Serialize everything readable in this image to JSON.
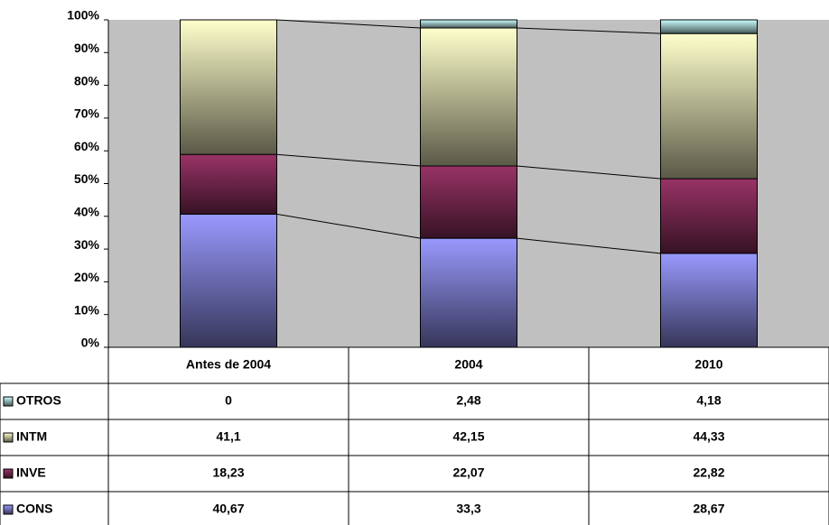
{
  "chart_data": {
    "type": "stacked_bar_percent",
    "categories": [
      "Antes de 2004",
      "2004",
      "2010"
    ],
    "series": [
      {
        "name": "CONS",
        "color": "#9999ff",
        "values": [
          40.67,
          33.3,
          28.67
        ],
        "value_labels": [
          "40,67",
          "33,3",
          "28,67"
        ]
      },
      {
        "name": "INVE",
        "color": "#993366",
        "values": [
          18.23,
          22.07,
          22.82
        ],
        "value_labels": [
          "18,23",
          "22,07",
          "22,82"
        ]
      },
      {
        "name": "INTM",
        "color": "#ffffcc",
        "values": [
          41.1,
          42.15,
          44.33
        ],
        "value_labels": [
          "41,1",
          "42,15",
          "44,33"
        ]
      },
      {
        "name": "OTROS",
        "color": "#ccffff",
        "values": [
          0,
          2.48,
          4.18
        ],
        "value_labels": [
          "0",
          "2,48",
          "4,18"
        ]
      }
    ],
    "ylim": [
      0,
      100
    ],
    "yticks": [
      {
        "value": 0,
        "label": "0%"
      },
      {
        "value": 10,
        "label": "10%"
      },
      {
        "value": 20,
        "label": "20%"
      },
      {
        "value": 30,
        "label": "30%"
      },
      {
        "value": 40,
        "label": "40%"
      },
      {
        "value": 50,
        "label": "50%"
      },
      {
        "value": 60,
        "label": "60%"
      },
      {
        "value": 70,
        "label": "70%"
      },
      {
        "value": 80,
        "label": "80%"
      },
      {
        "value": 90,
        "label": "90%"
      },
      {
        "value": 100,
        "label": "100%"
      }
    ],
    "plot_background": "#c0c0c0",
    "data_table": true
  }
}
